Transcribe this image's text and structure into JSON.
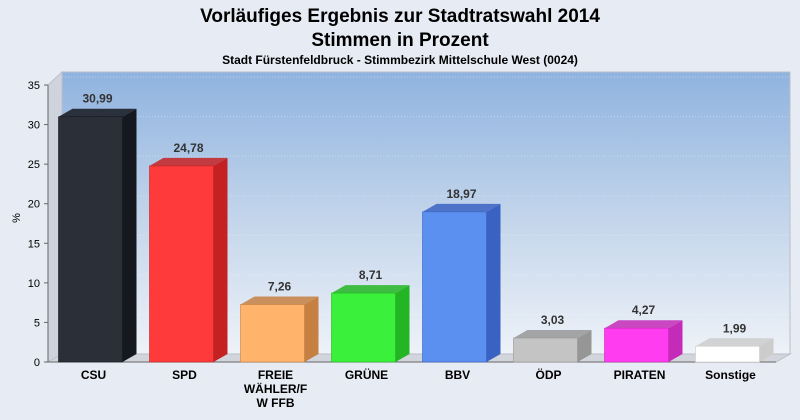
{
  "chart_data": {
    "type": "bar",
    "title": "Vorläufiges Ergebnis zur Stadtratswahl 2014",
    "title2": "Stimmen in Prozent",
    "subtitle": "Stadt Fürstenfeldbruck - Stimmbezirk Mittelschule West (0024)",
    "ylabel": "%",
    "xlabel": "",
    "ylim": [
      0,
      35
    ],
    "yticks": [
      "0",
      "5",
      "10",
      "15",
      "20",
      "25",
      "30",
      "35"
    ],
    "grid": true,
    "categories": [
      "CSU",
      "SPD",
      "FREIE WÄHLER/FW FFB",
      "GRÜNE",
      "BBV",
      "ÖDP",
      "PIRATEN",
      "Sonstige"
    ],
    "category_lines": [
      [
        "CSU"
      ],
      [
        "SPD"
      ],
      [
        "FREIE",
        "WÄHLER/F",
        "W FFB"
      ],
      [
        "GRÜNE"
      ],
      [
        "BBV"
      ],
      [
        "ÖDP"
      ],
      [
        "PIRATEN"
      ],
      [
        "Sonstige"
      ]
    ],
    "values": [
      30.99,
      24.78,
      7.26,
      8.71,
      18.97,
      3.03,
      4.27,
      1.99
    ],
    "value_labels": [
      "30,99",
      "24,78",
      "7,26",
      "8,71",
      "18,97",
      "3,03",
      "4,27",
      "1,99"
    ],
    "colors": [
      "#2b2f38",
      "#ff3a3a",
      "#ffb36b",
      "#3af03a",
      "#5b8ff0",
      "#c4c4c4",
      "#ff3cf0",
      "#ffffff"
    ],
    "colors_dark": [
      "#15181e",
      "#c42222",
      "#c68042",
      "#23b523",
      "#3a62c2",
      "#969696",
      "#c42bb9",
      "#cccccc"
    ]
  }
}
